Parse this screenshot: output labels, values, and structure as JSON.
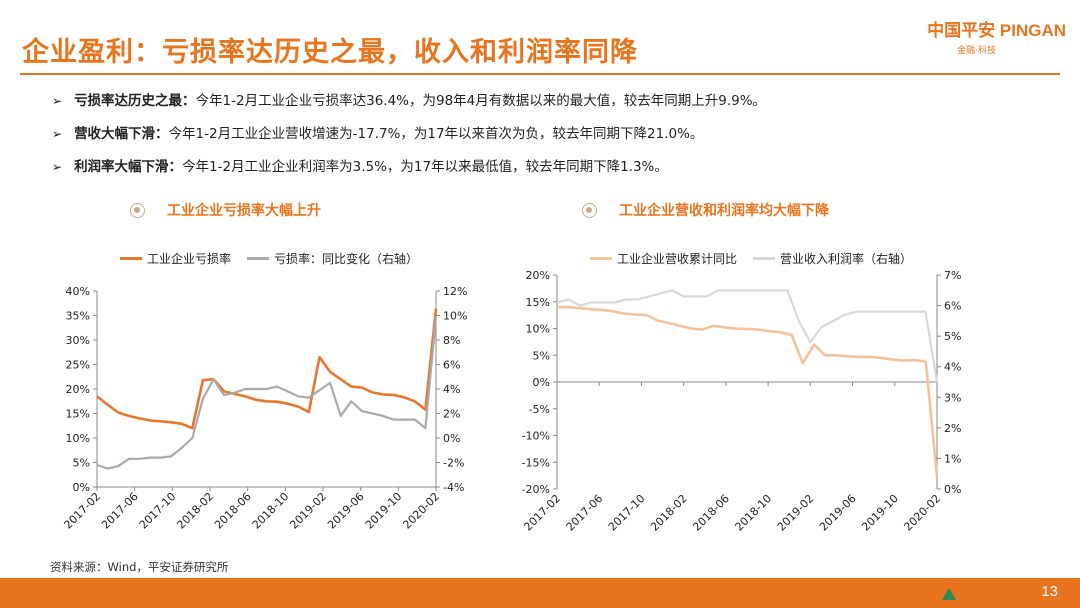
{
  "header": {
    "title": "企业盈利：亏损率达历史之最，收入和利润率同降",
    "logo_main": "中国平安 PINGAN",
    "logo_sub": "金融·科技"
  },
  "bullets": [
    {
      "bold": "亏损率达历史之最：",
      "text": "今年1-2月工业企业亏损率达36.4%，为98年4月有数据以来的最大值，较去年同期上升9.9%。"
    },
    {
      "bold": "营收大幅下滑：",
      "text": "今年1-2月工业企业营收增速为-17.7%，为17年以来首次为负，较去年同期下降21.0%。"
    },
    {
      "bold": "利润率大幅下滑：",
      "text": "今年1-2月工业企业利润率为3.5%，为17年以来最低值，较去年同期下降1.3%。"
    }
  ],
  "footer": {
    "source": "资料来源：Wind，平安证券研究所",
    "page": "13"
  },
  "colors": {
    "accent": "#e8741e",
    "series_orange": "#e8762d",
    "series_gray": "#aaaaaa",
    "series_lightorange": "#f3c29a",
    "series_lightgray": "#d9d9d9"
  },
  "chart_data": [
    {
      "type": "line",
      "title": "工业企业亏损率大幅上升",
      "x_ticks": [
        "2017-02",
        "2017-06",
        "2017-10",
        "2018-02",
        "2018-06",
        "2018-10",
        "2019-02",
        "2019-06",
        "2019-10",
        "2020-02"
      ],
      "n_points": 37,
      "series": [
        {
          "name": "工业企业亏损率",
          "axis": "left",
          "values": [
            18.5,
            16.8,
            15.2,
            14.5,
            14.0,
            13.6,
            13.4,
            13.2,
            12.9,
            12.0,
            21.8,
            22.0,
            19.5,
            19.0,
            18.5,
            17.8,
            17.5,
            17.4,
            17.0,
            16.4,
            15.3,
            26.5,
            23.5,
            22.0,
            20.5,
            20.3,
            19.3,
            18.9,
            18.8,
            18.3,
            17.5,
            15.8,
            36.4
          ]
        },
        {
          "name": "亏损率：同比变化（右轴）",
          "axis": "right",
          "values": [
            -2.2,
            -2.5,
            -2.3,
            -1.7,
            -1.7,
            -1.6,
            -1.6,
            -1.5,
            -0.8,
            0.0,
            3.2,
            4.8,
            3.5,
            3.7,
            4.0,
            4.0,
            4.0,
            4.2,
            3.8,
            3.4,
            3.3,
            3.9,
            4.5,
            1.8,
            3.0,
            2.2,
            2.0,
            1.8,
            1.5,
            1.5,
            1.5,
            0.8,
            9.9
          ]
        }
      ],
      "y_left": {
        "min": 0,
        "max": 40,
        "step": 5,
        "ticks": [
          "0%",
          "5%",
          "10%",
          "15%",
          "20%",
          "25%",
          "30%",
          "35%",
          "40%"
        ]
      },
      "y_right": {
        "min": -4,
        "max": 12,
        "step": 2,
        "ticks": [
          "-4%",
          "-2%",
          "0%",
          "2%",
          "4%",
          "6%",
          "8%",
          "10%",
          "12%"
        ]
      }
    },
    {
      "type": "line",
      "title": "工业企业营收和利润率均大幅下降",
      "x_ticks": [
        "2017-02",
        "2017-06",
        "2017-10",
        "2018-02",
        "2018-06",
        "2018-10",
        "2019-02",
        "2019-06",
        "2019-10",
        "2020-02"
      ],
      "n_points": 37,
      "series": [
        {
          "name": "工业企业营收累计同比",
          "axis": "left",
          "values": [
            14.0,
            14.0,
            13.8,
            13.6,
            13.5,
            13.2,
            12.8,
            12.6,
            12.5,
            11.5,
            11.0,
            10.5,
            10.0,
            9.8,
            10.5,
            10.2,
            10.0,
            9.9,
            9.8,
            9.5,
            9.3,
            8.8,
            3.5,
            7.0,
            5.0,
            5.0,
            4.8,
            4.7,
            4.7,
            4.5,
            4.2,
            4.0,
            4.1,
            3.8,
            -17.7
          ]
        },
        {
          "name": "营业收入利润率（右轴）",
          "axis": "right",
          "values": [
            6.1,
            6.2,
            6.0,
            6.1,
            6.1,
            6.1,
            6.2,
            6.2,
            6.3,
            6.4,
            6.5,
            6.3,
            6.3,
            6.3,
            6.5,
            6.5,
            6.5,
            6.5,
            6.5,
            6.5,
            6.5,
            5.5,
            4.8,
            5.3,
            5.5,
            5.7,
            5.8,
            5.8,
            5.8,
            5.8,
            5.8,
            5.8,
            5.8,
            3.5
          ]
        }
      ],
      "y_left": {
        "min": -20,
        "max": 20,
        "step": 5,
        "ticks": [
          "-20%",
          "-15%",
          "-10%",
          "-5%",
          "0%",
          "5%",
          "10%",
          "15%",
          "20%"
        ]
      },
      "y_right": {
        "min": 0,
        "max": 7,
        "step": 1,
        "ticks": [
          "0%",
          "1%",
          "2%",
          "3%",
          "4%",
          "5%",
          "6%",
          "7%"
        ]
      }
    }
  ]
}
